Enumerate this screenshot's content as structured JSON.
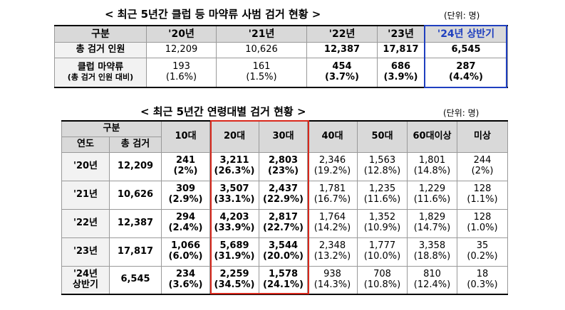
{
  "table1": {
    "title": "< 최근 5년간 클럽 등 마약류 사범 검거 현황 >",
    "unit": "(단위: 명)",
    "headers": [
      "구분",
      "'20년",
      "'21년",
      "'22년",
      "'23년",
      "'24년 상반기"
    ],
    "row1": {
      "label": "총 검거 인원",
      "values": [
        "12,209",
        "10,626",
        "12,387",
        "17,817",
        "6,545"
      ]
    },
    "row2": {
      "label1": "클럽 마약류",
      "label2": "(총 검거 인원 대비)",
      "values": [
        "193",
        "161",
        "454",
        "686",
        "287"
      ],
      "pcts": [
        "(1.6%)",
        "(1.5%)",
        "(3.7%)",
        "(3.9%)",
        "(4.4%)"
      ]
    }
  },
  "table2": {
    "title": "< 최근 5년간 연령대별 검거 현황 >",
    "unit": "(단위: 명)",
    "header_group": "구분",
    "header_year": "연도",
    "header_total": "총 검거",
    "age_headers": [
      "10대",
      "20대",
      "30대",
      "40대",
      "50대",
      "60대이상",
      "미상"
    ],
    "rows": [
      {
        "year": "'20년",
        "total": "12,209",
        "values": [
          "241",
          "3,211",
          "2,803",
          "2,346",
          "1,563",
          "1,801",
          "244"
        ],
        "pcts": [
          "(2%)",
          "(26.3%)",
          "(23%)",
          "(19.2%)",
          "(12.8%)",
          "(14.8%)",
          "(2%)"
        ]
      },
      {
        "year": "'21년",
        "total": "10,626",
        "values": [
          "309",
          "3,507",
          "2,437",
          "1,781",
          "1,235",
          "1,229",
          "128"
        ],
        "pcts": [
          "(2.9%)",
          "(33.1%)",
          "(22.9%)",
          "(16.7%)",
          "(11.6%)",
          "(11.6%)",
          "(1.1%)"
        ]
      },
      {
        "year": "'22년",
        "total": "12,387",
        "values": [
          "294",
          "4,203",
          "2,817",
          "1,764",
          "1,352",
          "1,829",
          "128"
        ],
        "pcts": [
          "(2.4%)",
          "(33.9%)",
          "(22.7%)",
          "(14.2%)",
          "(10.9%)",
          "(14.7%)",
          "(1.0%)"
        ]
      },
      {
        "year": "'23년",
        "total": "17,817",
        "values": [
          "1,066",
          "5,689",
          "3,544",
          "2,348",
          "1,777",
          "3,358",
          "35"
        ],
        "pcts": [
          "(6.0%)",
          "(31.9%)",
          "(20.0%)",
          "(13.2%)",
          "(10.0%)",
          "(18.8%)",
          "(0.2%)"
        ]
      },
      {
        "year1": "'24년",
        "year2": "상반기",
        "total": "6,545",
        "values": [
          "234",
          "2,259",
          "1,578",
          "938",
          "708",
          "810",
          "18"
        ],
        "pcts": [
          "(3.6%)",
          "(34.5%)",
          "(24.1%)",
          "(14.3%)",
          "(10.8%)",
          "(12.4%)",
          "(0.3%)"
        ]
      }
    ]
  },
  "colors": {
    "blue_box": "#1f3fbf",
    "red_box": "#d9281c",
    "header_bg": "#d9d9d9"
  }
}
